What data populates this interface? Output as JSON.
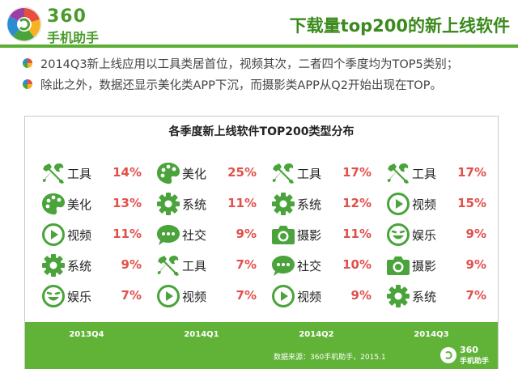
{
  "header": {
    "logo_number": "360",
    "logo_text": "手机助手",
    "title": "下载量top200的新上线软件"
  },
  "bullets": [
    "2014Q3新上线应用以工具类居首位，视频其次，二者四个季度均为TOP5类别；",
    "除此之外，数据还显示美化类APP下沉，而摄影类APP从Q2开始出现在TOP。"
  ],
  "chart": {
    "title": "各季度新上线软件TOP200类型分布",
    "source": "数据来源：360手机助手，2015.1",
    "footer_logo_number": "360",
    "footer_logo_text": "手机助手",
    "accent_color": "#61b338",
    "percent_color": "#e2504a"
  },
  "chart_data": {
    "type": "table",
    "title": "各季度新上线软件TOP200类型分布",
    "columns": [
      {
        "quarter": "2013Q4",
        "items": [
          {
            "category": "工具",
            "percent": "14%",
            "icon": "tools-icon"
          },
          {
            "category": "美化",
            "percent": "13%",
            "icon": "palette-icon"
          },
          {
            "category": "视频",
            "percent": "11%",
            "icon": "play-icon"
          },
          {
            "category": "系统",
            "percent": "9%",
            "icon": "gear-icon"
          },
          {
            "category": "娱乐",
            "percent": "7%",
            "icon": "smiley-icon"
          }
        ]
      },
      {
        "quarter": "2014Q1",
        "items": [
          {
            "category": "美化",
            "percent": "25%",
            "icon": "palette-icon"
          },
          {
            "category": "系统",
            "percent": "11%",
            "icon": "gear-icon"
          },
          {
            "category": "社交",
            "percent": "9%",
            "icon": "chat-icon"
          },
          {
            "category": "工具",
            "percent": "7%",
            "icon": "tools-icon"
          },
          {
            "category": "视频",
            "percent": "7%",
            "icon": "play-icon"
          }
        ]
      },
      {
        "quarter": "2014Q2",
        "items": [
          {
            "category": "工具",
            "percent": "17%",
            "icon": "tools-icon"
          },
          {
            "category": "系统",
            "percent": "12%",
            "icon": "gear-icon"
          },
          {
            "category": "摄影",
            "percent": "11%",
            "icon": "camera-icon"
          },
          {
            "category": "社交",
            "percent": "10%",
            "icon": "chat-icon"
          },
          {
            "category": "视频",
            "percent": "9%",
            "icon": "play-icon"
          }
        ]
      },
      {
        "quarter": "2014Q3",
        "items": [
          {
            "category": "工具",
            "percent": "17%",
            "icon": "tools-icon"
          },
          {
            "category": "视频",
            "percent": "15%",
            "icon": "play-icon"
          },
          {
            "category": "娱乐",
            "percent": "9%",
            "icon": "smiley-icon"
          },
          {
            "category": "摄影",
            "percent": "9%",
            "icon": "camera-icon"
          },
          {
            "category": "系统",
            "percent": "7%",
            "icon": "gear-icon"
          }
        ]
      }
    ]
  }
}
